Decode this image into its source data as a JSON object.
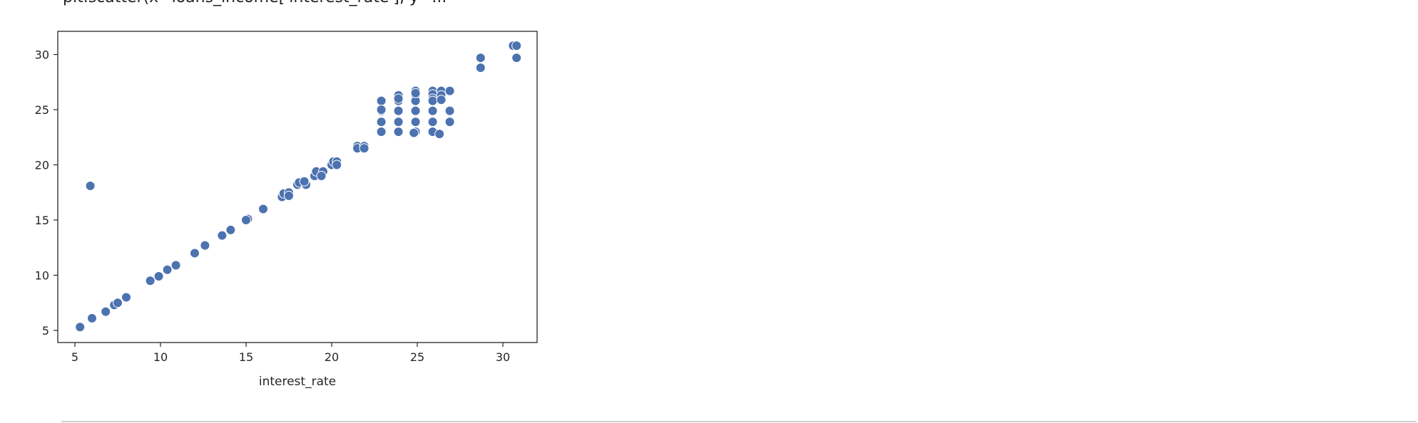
{
  "header": {
    "clipped_text": "plt.scatter(x=loans_income['interest_rate'], y=..."
  },
  "chart_data": {
    "type": "scatter",
    "title": "",
    "xlabel": "interest_rate",
    "ylabel": "",
    "xlim": [
      4.0,
      32.0
    ],
    "ylim": [
      3.9,
      32.1
    ],
    "xticks": [
      5,
      10,
      15,
      20,
      25,
      30
    ],
    "yticks": [
      5,
      10,
      15,
      20,
      25,
      30
    ],
    "grid": false,
    "marker_color": "#4c72b0",
    "marker_edge_color": "#ffffff",
    "series": [
      {
        "x": [
          5.3,
          6.0,
          6.8,
          7.3,
          7.5,
          8.0,
          9.4,
          9.9,
          10.4,
          10.9,
          12.0,
          12.6,
          13.6,
          14.1,
          15.1,
          15.0,
          16.0,
          17.1,
          17.2,
          17.5,
          17.5,
          18.0,
          18.1,
          18.5,
          18.4,
          19.0,
          19.1,
          19.5,
          19.4,
          20.0,
          20.1,
          20.3,
          20.3,
          21.5,
          21.5,
          21.9,
          21.9,
          22.9,
          22.9,
          22.9,
          22.9,
          22.9,
          23.9,
          23.9,
          23.9,
          23.9,
          23.9,
          23.9,
          24.9,
          24.9,
          24.9,
          24.9,
          24.9,
          24.9,
          24.9,
          24.8,
          25.9,
          25.9,
          25.9,
          25.9,
          25.9,
          25.9,
          25.9,
          26.4,
          26.4,
          26.4,
          26.3,
          26.9,
          26.9,
          26.9,
          28.7,
          28.7,
          30.6,
          30.8,
          30.8,
          5.9
        ],
        "y": [
          5.3,
          6.1,
          6.7,
          7.3,
          7.5,
          8.0,
          9.5,
          9.9,
          10.5,
          10.9,
          12.0,
          12.7,
          13.6,
          14.1,
          15.1,
          15.0,
          16.0,
          17.1,
          17.4,
          17.5,
          17.2,
          18.2,
          18.4,
          18.2,
          18.5,
          19.0,
          19.4,
          19.4,
          19.0,
          20.0,
          20.3,
          20.3,
          20.0,
          21.7,
          21.5,
          21.7,
          21.5,
          25.8,
          24.9,
          23.9,
          23.0,
          25.0,
          26.3,
          25.8,
          24.9,
          23.9,
          23.0,
          26.0,
          26.7,
          26.3,
          25.8,
          24.9,
          23.9,
          23.0,
          26.5,
          22.9,
          26.7,
          26.4,
          26.0,
          25.8,
          24.9,
          23.9,
          23.0,
          26.7,
          26.3,
          25.9,
          22.8,
          26.7,
          24.9,
          23.9,
          29.7,
          28.8,
          30.8,
          30.8,
          29.7,
          18.1
        ]
      }
    ]
  }
}
